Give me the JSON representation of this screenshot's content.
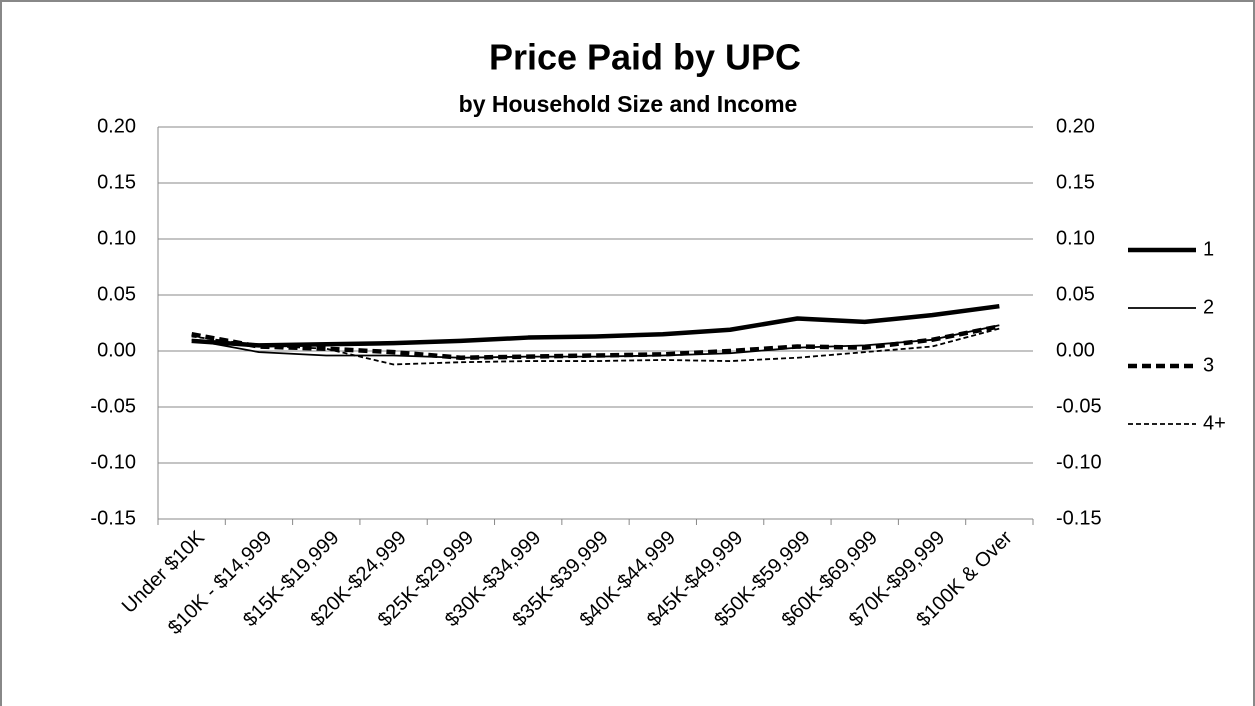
{
  "chart_data": {
    "type": "line",
    "title": "Price Paid by UPC",
    "subtitle": "by Household Size and Income",
    "categories": [
      "Under $10K",
      "$10K - $14,999",
      "$15K-$19,999",
      "$20K-$24,999",
      "$25K-$29,999",
      "$30K-$34,999",
      "$35K-$39,999",
      "$40K-$44,999",
      "$45K-$49,999",
      "$50K-$59,999",
      "$60K-$69,999",
      "$70K-$99,999",
      "$100K & Over"
    ],
    "series": [
      {
        "name": "1",
        "color": "#000000",
        "weight": "heavy",
        "style": "solid",
        "values": [
          0.009,
          0.005,
          0.006,
          0.007,
          0.009,
          0.012,
          0.013,
          0.015,
          0.019,
          0.029,
          0.026,
          0.032,
          0.04
        ]
      },
      {
        "name": "2",
        "color": "#000000",
        "weight": "light",
        "style": "solid",
        "values": [
          0.01,
          -0.001,
          -0.004,
          -0.004,
          -0.006,
          -0.005,
          -0.005,
          -0.004,
          -0.002,
          0.003,
          0.005,
          0.01,
          0.023
        ]
      },
      {
        "name": "3",
        "color": "#000000",
        "weight": "heavy",
        "style": "dashed",
        "values": [
          0.015,
          0.004,
          0.002,
          -0.001,
          -0.006,
          -0.005,
          -0.004,
          -0.003,
          0.0,
          0.004,
          0.003,
          0.01,
          0.022
        ]
      },
      {
        "name": "4+",
        "color": "#000000",
        "weight": "light",
        "style": "dashed",
        "values": [
          0.013,
          0.005,
          0.002,
          -0.012,
          -0.01,
          -0.009,
          -0.009,
          -0.008,
          -0.009,
          -0.006,
          -0.001,
          0.004,
          0.02
        ]
      }
    ],
    "ylim": [
      -0.15,
      0.2
    ],
    "yticks": [
      {
        "value": -0.15,
        "label": "-0.15"
      },
      {
        "value": -0.1,
        "label": "-0.10"
      },
      {
        "value": -0.05,
        "label": "-0.05"
      },
      {
        "value": 0,
        "label": "0.00"
      },
      {
        "value": 0.05,
        "label": "0.05"
      },
      {
        "value": 0.1,
        "label": "0.10"
      },
      {
        "value": 0.15,
        "label": "0.15"
      },
      {
        "value": 0.2,
        "label": "0.20"
      }
    ],
    "y2lim": [
      -0.15,
      0.2
    ],
    "y2ticks": [
      {
        "value": -0.15,
        "label": "-0.15"
      },
      {
        "value": -0.1,
        "label": "-0.10"
      },
      {
        "value": -0.05,
        "label": "-0.05"
      },
      {
        "value": 0,
        "label": "0.00"
      },
      {
        "value": 0.05,
        "label": "0.05"
      },
      {
        "value": 0.1,
        "label": "0.10"
      },
      {
        "value": 0.15,
        "label": "0.15"
      },
      {
        "value": 0.2,
        "label": "0.20"
      }
    ],
    "grid": true,
    "legend": "right"
  }
}
